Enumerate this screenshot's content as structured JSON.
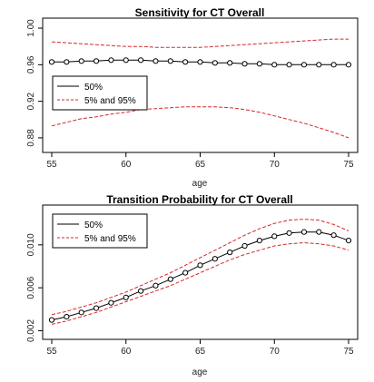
{
  "chart_data": [
    {
      "type": "line",
      "title": "Sensitivity for CT Overall",
      "xlabel": "age",
      "ylabel": "",
      "xlim": [
        55,
        75
      ],
      "ylim": [
        0.87,
        1.005
      ],
      "x_ticks": [
        "55",
        "60",
        "65",
        "70",
        "75"
      ],
      "y_ticks": [
        "0.88",
        "0.92",
        "0.96",
        "1.00"
      ],
      "x": [
        55,
        56,
        57,
        58,
        59,
        60,
        61,
        62,
        63,
        64,
        65,
        66,
        67,
        68,
        69,
        70,
        71,
        72,
        73,
        74,
        75
      ],
      "legend": {
        "position": "center-left",
        "entries": [
          "50%",
          "5% and 95%"
        ]
      },
      "grid": false,
      "series": [
        {
          "name": "50%",
          "color": "#000000",
          "style": "solid",
          "markers": "circle",
          "values": [
            0.963,
            0.963,
            0.964,
            0.964,
            0.965,
            0.965,
            0.965,
            0.964,
            0.964,
            0.963,
            0.963,
            0.962,
            0.962,
            0.961,
            0.961,
            0.96,
            0.96,
            0.96,
            0.96,
            0.96,
            0.96
          ]
        },
        {
          "name": "5%",
          "color": "#d62728",
          "style": "dashed",
          "values": [
            0.893,
            0.897,
            0.901,
            0.903,
            0.906,
            0.908,
            0.911,
            0.912,
            0.913,
            0.914,
            0.914,
            0.914,
            0.913,
            0.911,
            0.908,
            0.904,
            0.9,
            0.896,
            0.891,
            0.886,
            0.88
          ]
        },
        {
          "name": "95%",
          "color": "#d62728",
          "style": "dashed",
          "values": [
            0.985,
            0.984,
            0.983,
            0.982,
            0.981,
            0.98,
            0.98,
            0.979,
            0.979,
            0.979,
            0.979,
            0.98,
            0.981,
            0.982,
            0.983,
            0.984,
            0.985,
            0.986,
            0.987,
            0.988,
            0.988
          ]
        }
      ]
    },
    {
      "type": "line",
      "title": "Transition Probability for CT Overall",
      "xlabel": "age",
      "ylabel": "",
      "xlim": [
        55,
        75
      ],
      "ylim": [
        0.0017,
        0.0132
      ],
      "x_ticks": [
        "55",
        "60",
        "65",
        "70",
        "75"
      ],
      "y_ticks": [
        "0.002",
        "0.006",
        "0.010"
      ],
      "x": [
        55,
        56,
        57,
        58,
        59,
        60,
        61,
        62,
        63,
        64,
        65,
        66,
        67,
        68,
        69,
        70,
        71,
        72,
        73,
        74,
        75
      ],
      "legend": {
        "position": "top-left",
        "entries": [
          "50%",
          "5% and 95%"
        ]
      },
      "grid": false,
      "series": [
        {
          "name": "50%",
          "color": "#000000",
          "style": "solid",
          "markers": "circle",
          "values": [
            0.003,
            0.0033,
            0.0037,
            0.0041,
            0.0046,
            0.0051,
            0.0057,
            0.0062,
            0.0068,
            0.0074,
            0.0081,
            0.0087,
            0.0093,
            0.0099,
            0.0104,
            0.0108,
            0.0111,
            0.0112,
            0.0112,
            0.0109,
            0.0104
          ]
        },
        {
          "name": "5%",
          "color": "#d62728",
          "style": "dashed",
          "values": [
            0.0026,
            0.0029,
            0.0033,
            0.0037,
            0.0042,
            0.0047,
            0.0052,
            0.0057,
            0.0062,
            0.0068,
            0.0074,
            0.008,
            0.0086,
            0.0091,
            0.0095,
            0.0099,
            0.0101,
            0.0102,
            0.0101,
            0.0099,
            0.0095
          ]
        },
        {
          "name": "95%",
          "color": "#d62728",
          "style": "dashed",
          "values": [
            0.0035,
            0.0038,
            0.0042,
            0.0046,
            0.0051,
            0.0056,
            0.0062,
            0.0068,
            0.0074,
            0.0081,
            0.0088,
            0.0095,
            0.0102,
            0.0109,
            0.0115,
            0.012,
            0.0123,
            0.0124,
            0.0123,
            0.0119,
            0.0113
          ]
        }
      ]
    }
  ]
}
